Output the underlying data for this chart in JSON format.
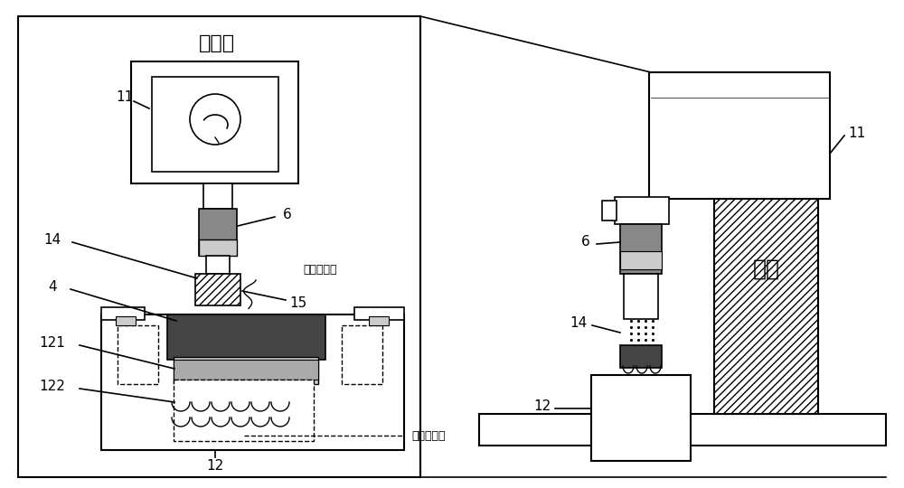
{
  "title_left": "正视图",
  "label_positive": "接电源正极",
  "label_negative": "接电源负极",
  "label_support": "支架",
  "bg_color": "#ffffff",
  "gray_dark": "#444444",
  "gray_medium": "#888888",
  "gray_light": "#cccccc"
}
